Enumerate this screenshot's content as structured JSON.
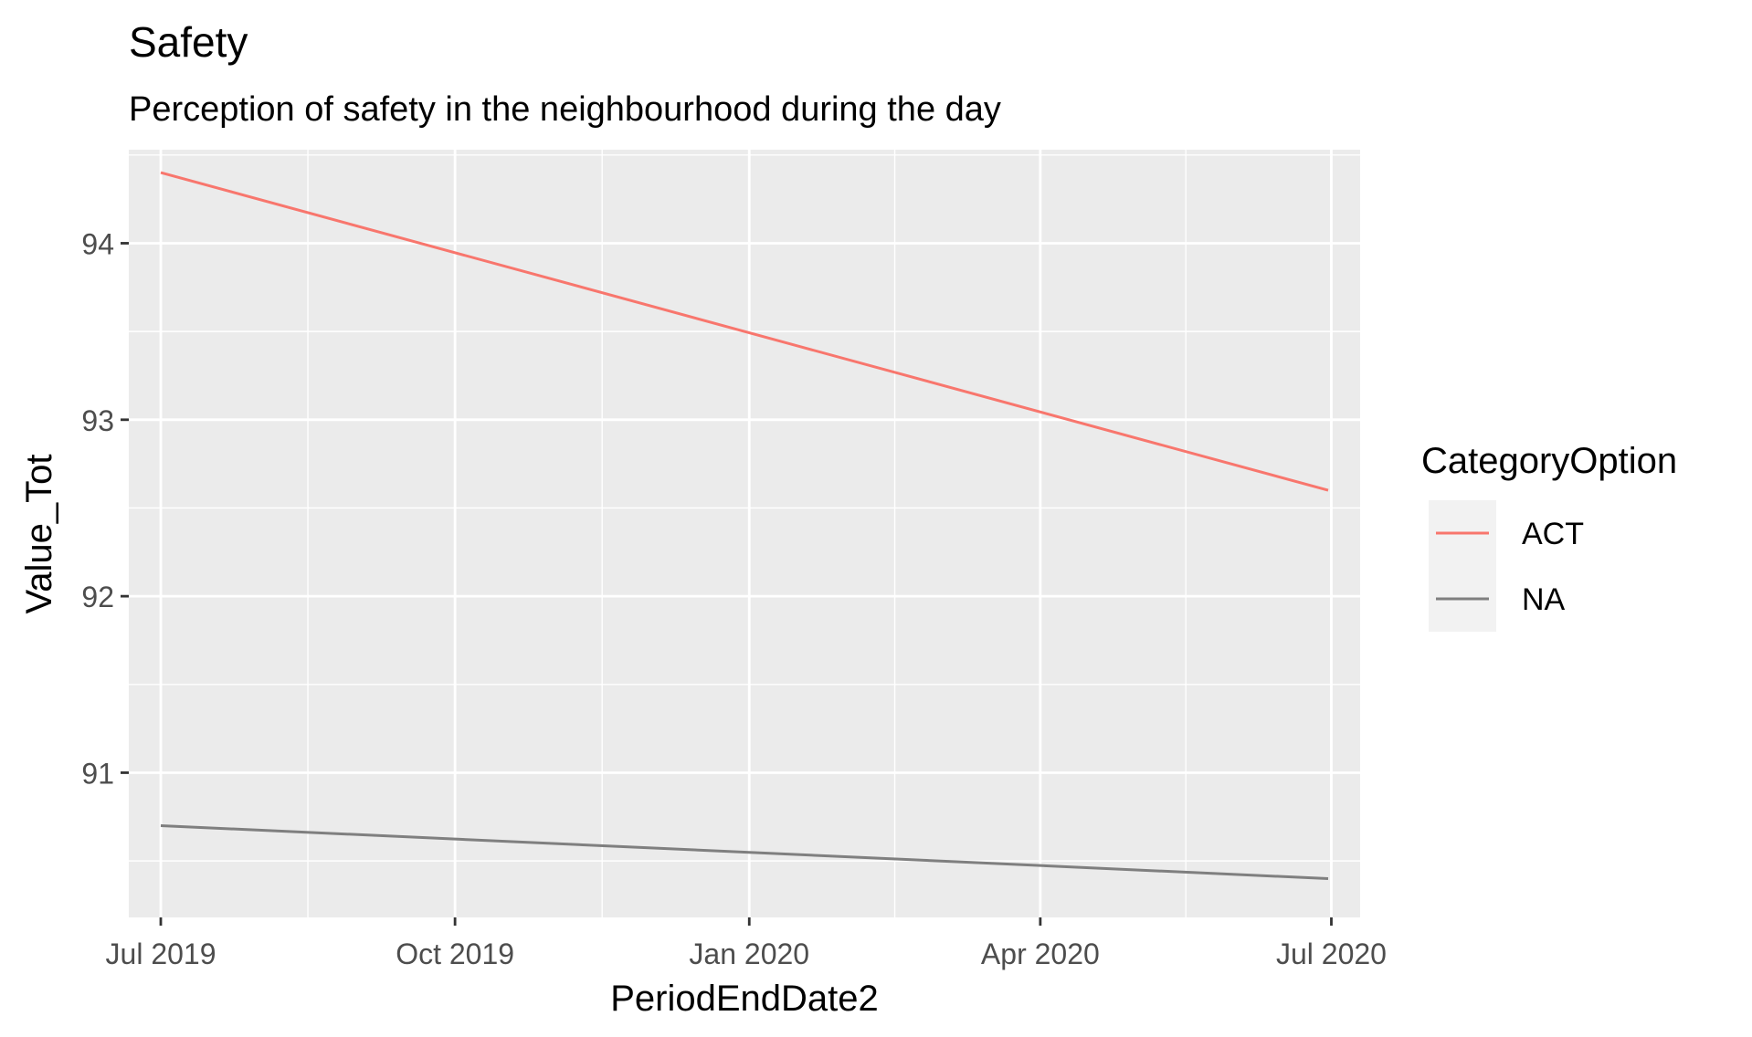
{
  "chart_data": {
    "type": "line",
    "title": "Safety",
    "subtitle": "Perception of safety in the neighbourhood during the day",
    "xlabel": "PeriodEndDate2",
    "ylabel": "Value_Tot",
    "x": [
      "2019-07-01",
      "2020-06-30"
    ],
    "x_tick_dates": [
      "2019-07-01",
      "2019-10-01",
      "2020-01-01",
      "2020-04-01",
      "2020-07-01"
    ],
    "x_tick_labels": [
      "Jul 2019",
      "Oct 2019",
      "Jan 2020",
      "Apr 2020",
      "Jul 2020"
    ],
    "y_ticks": [
      91,
      92,
      93,
      94
    ],
    "xlim": [
      "2019-06-21",
      "2020-07-10"
    ],
    "ylim": [
      90.18,
      94.53
    ],
    "grid": true,
    "legend": {
      "title": "CategoryOption",
      "position": "right"
    },
    "series": [
      {
        "name": "ACT",
        "color": "#F8766D",
        "values": [
          94.4,
          92.6
        ]
      },
      {
        "name": "NA",
        "color": "#7F7F7F",
        "values": [
          90.7,
          90.4
        ]
      }
    ],
    "panel_background": "#EBEBEB",
    "grid_color": "#FFFFFF"
  }
}
